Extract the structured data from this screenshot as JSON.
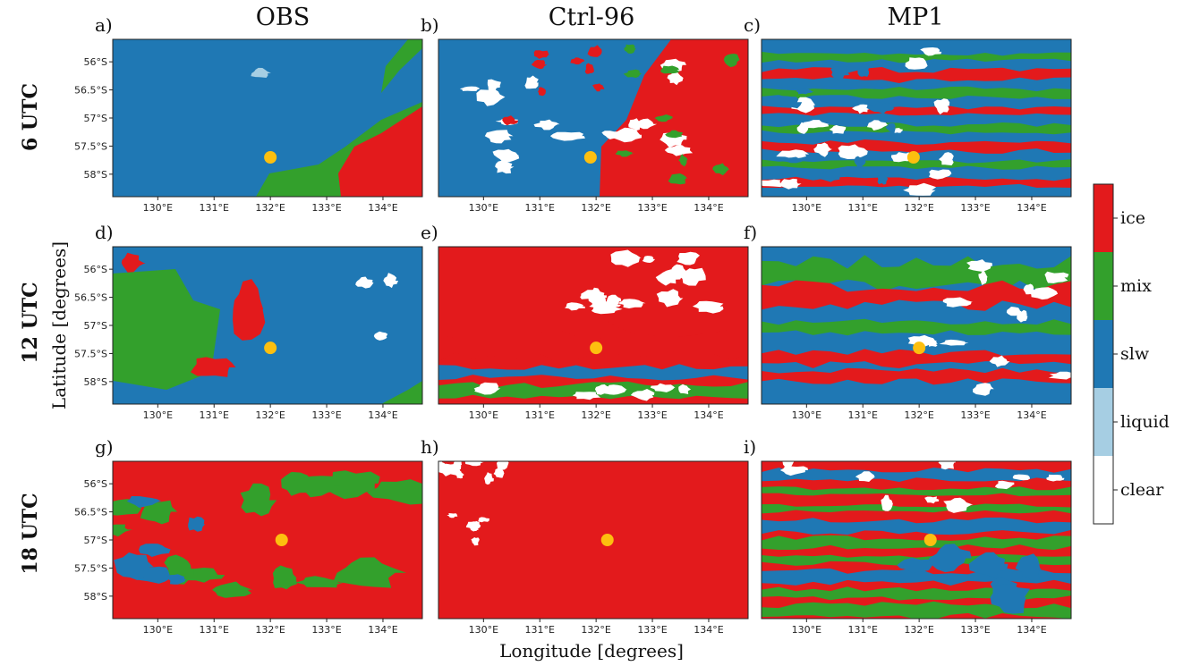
{
  "columns": [
    "OBS",
    "Ctrl-96",
    "MP1"
  ],
  "rows": [
    "6 UTC",
    "12 UTC",
    "18 UTC"
  ],
  "xlabel": "Longitude [degrees]",
  "ylabel": "Latitude [degrees]",
  "chart_data": {
    "type": "heatmap",
    "layout": "3x3 grid of categorical cloud-phase maps",
    "x_ticks": [
      "130°E",
      "131°E",
      "132°E",
      "133°E",
      "134°E"
    ],
    "x_tick_values": [
      130,
      131,
      132,
      133,
      134
    ],
    "xlim": [
      129.2,
      134.7
    ],
    "y_ticks": [
      "56°S",
      "56.5°S",
      "57°S",
      "57.5°S",
      "58°S"
    ],
    "y_tick_values": [
      -56,
      -56.5,
      -57,
      -57.5,
      -58
    ],
    "ylim": [
      -58.4,
      -55.6
    ],
    "colorbar": {
      "categories": [
        "ice",
        "mix",
        "slw",
        "liquid",
        "clear"
      ],
      "colors": [
        "#e31a1c",
        "#33a02c",
        "#1f78b4",
        "#a6cee3",
        "#ffffff"
      ]
    },
    "site_marker": {
      "color": "#fdbf0f"
    },
    "panels": [
      {
        "letter": "a)",
        "column": "OBS",
        "row": "6 UTC",
        "dominant": "slw",
        "marker": [
          132.0,
          -57.7
        ]
      },
      {
        "letter": "b)",
        "column": "Ctrl-96",
        "row": "6 UTC",
        "dominant": "slw",
        "marker": [
          131.9,
          -57.7
        ]
      },
      {
        "letter": "c)",
        "column": "MP1",
        "row": "6 UTC",
        "dominant": "slw",
        "marker": [
          131.9,
          -57.7
        ]
      },
      {
        "letter": "d)",
        "column": "OBS",
        "row": "12 UTC",
        "dominant": "slw",
        "marker": [
          132.0,
          -57.4
        ]
      },
      {
        "letter": "e)",
        "column": "Ctrl-96",
        "row": "12 UTC",
        "dominant": "ice",
        "marker": [
          132.0,
          -57.4
        ]
      },
      {
        "letter": "f)",
        "column": "MP1",
        "row": "12 UTC",
        "dominant": "slw",
        "marker": [
          132.0,
          -57.4
        ]
      },
      {
        "letter": "g)",
        "column": "OBS",
        "row": "18 UTC",
        "dominant": "ice",
        "marker": [
          132.2,
          -57.0
        ]
      },
      {
        "letter": "h)",
        "column": "Ctrl-96",
        "row": "18 UTC",
        "dominant": "ice",
        "marker": [
          132.2,
          -57.0
        ]
      },
      {
        "letter": "i)",
        "column": "MP1",
        "row": "18 UTC",
        "dominant": "ice",
        "marker": [
          132.2,
          -57.0
        ]
      }
    ]
  }
}
